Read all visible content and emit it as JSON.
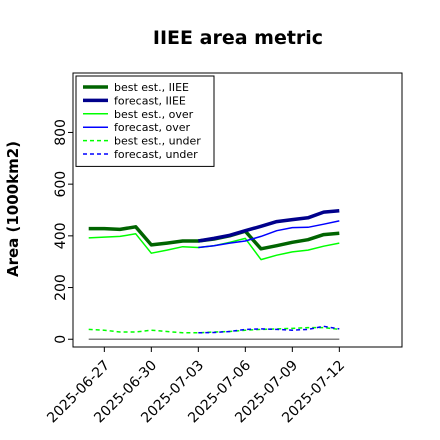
{
  "chart_data": {
    "type": "line",
    "title": "IIEE area metric",
    "ylabel": "Area (1000km2)",
    "xlabel": "",
    "ylim": [
      -30,
      1030
    ],
    "yticks": [
      0,
      200,
      400,
      600,
      800
    ],
    "xlim": [
      "2025-06-25",
      "2025-07-16"
    ],
    "xticks": [
      "2025-06-27",
      "2025-06-30",
      "2025-07-03",
      "2025-07-06",
      "2025-07-09",
      "2025-07-12"
    ],
    "highlighted_xtick": "2025-07-03",
    "highlight_color": "#228b22",
    "grid": false,
    "legend_position": "upper-left",
    "series": [
      {
        "name": "best est., IIEE",
        "color": "#006400",
        "style": "solid",
        "weight": "thick",
        "x": [
          "2025-06-26",
          "2025-06-27",
          "2025-06-28",
          "2025-06-29",
          "2025-06-30",
          "2025-07-01",
          "2025-07-02",
          "2025-07-03",
          "2025-07-04",
          "2025-07-05",
          "2025-07-06",
          "2025-07-07",
          "2025-07-08",
          "2025-07-09",
          "2025-07-10",
          "2025-07-11",
          "2025-07-12"
        ],
        "values": [
          428,
          428,
          425,
          435,
          365,
          372,
          380,
          380,
          388,
          400,
          418,
          350,
          362,
          375,
          385,
          405,
          410
        ]
      },
      {
        "name": "forecast, IIEE",
        "color": "#00008b",
        "style": "solid",
        "weight": "thick",
        "x": [
          "2025-07-03",
          "2025-07-04",
          "2025-07-05",
          "2025-07-06",
          "2025-07-07",
          "2025-07-08",
          "2025-07-09",
          "2025-07-10",
          "2025-07-11",
          "2025-07-12"
        ],
        "values": [
          380,
          390,
          402,
          420,
          437,
          455,
          463,
          470,
          492,
          497
        ]
      },
      {
        "name": "best est., over",
        "color": "#00ff00",
        "style": "solid",
        "weight": "thin",
        "x": [
          "2025-06-26",
          "2025-06-27",
          "2025-06-28",
          "2025-06-29",
          "2025-06-30",
          "2025-07-01",
          "2025-07-02",
          "2025-07-03",
          "2025-07-04",
          "2025-07-05",
          "2025-07-06",
          "2025-07-07",
          "2025-07-08",
          "2025-07-09",
          "2025-07-10",
          "2025-07-11",
          "2025-07-12"
        ],
        "values": [
          392,
          395,
          398,
          408,
          333,
          345,
          358,
          355,
          362,
          375,
          390,
          308,
          325,
          338,
          345,
          360,
          372
        ]
      },
      {
        "name": "forecast, over",
        "color": "#0000ff",
        "style": "solid",
        "weight": "thin",
        "x": [
          "2025-07-03",
          "2025-07-04",
          "2025-07-05",
          "2025-07-06",
          "2025-07-07",
          "2025-07-08",
          "2025-07-09",
          "2025-07-10",
          "2025-07-11",
          "2025-07-12"
        ],
        "values": [
          355,
          362,
          372,
          380,
          398,
          420,
          432,
          433,
          445,
          458
        ]
      },
      {
        "name": "best est., under",
        "color": "#00ff00",
        "style": "dashed",
        "weight": "thin",
        "x": [
          "2025-06-26",
          "2025-06-27",
          "2025-06-28",
          "2025-06-29",
          "2025-06-30",
          "2025-07-01",
          "2025-07-02",
          "2025-07-03",
          "2025-07-04",
          "2025-07-05",
          "2025-07-06",
          "2025-07-07",
          "2025-07-08",
          "2025-07-09",
          "2025-07-10",
          "2025-07-11",
          "2025-07-12"
        ],
        "values": [
          38,
          35,
          28,
          28,
          35,
          30,
          25,
          25,
          28,
          30,
          35,
          38,
          40,
          42,
          45,
          45,
          38
        ]
      },
      {
        "name": "forecast, under",
        "color": "#0000ff",
        "style": "dashed",
        "weight": "thin",
        "x": [
          "2025-07-03",
          "2025-07-04",
          "2025-07-05",
          "2025-07-06",
          "2025-07-07",
          "2025-07-08",
          "2025-07-09",
          "2025-07-10",
          "2025-07-11",
          "2025-07-12"
        ],
        "values": [
          25,
          26,
          30,
          38,
          40,
          38,
          35,
          38,
          50,
          40
        ]
      },
      {
        "name": "",
        "color": "#808080",
        "style": "solid",
        "weight": "thin",
        "x": [
          "2025-06-26",
          "2025-07-12"
        ],
        "values": [
          0,
          0
        ]
      }
    ]
  }
}
